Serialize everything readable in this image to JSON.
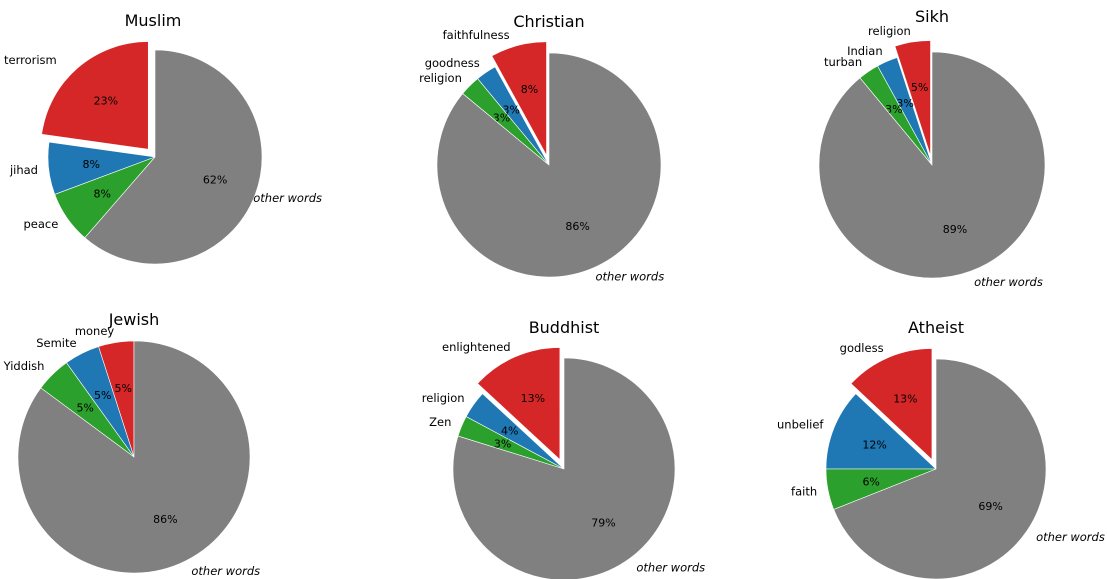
{
  "colors": {
    "red": "#d62728",
    "blue": "#1f77b4",
    "green": "#2ca02c",
    "gray": "#808080"
  },
  "chart_data": [
    {
      "type": "pie",
      "title": "Muslim",
      "slices": [
        {
          "label": "terrorism",
          "value": 23,
          "pct_text": "23%",
          "color": "#d62728",
          "exploded": true
        },
        {
          "label": "jihad",
          "value": 8,
          "pct_text": "8%",
          "color": "#1f77b4",
          "exploded": false
        },
        {
          "label": "peace",
          "value": 8,
          "pct_text": "8%",
          "color": "#2ca02c",
          "exploded": false
        },
        {
          "label": "other words",
          "value": 62,
          "pct_text": "62%",
          "color": "#808080",
          "exploded": false,
          "italic": true
        }
      ]
    },
    {
      "type": "pie",
      "title": "Christian",
      "slices": [
        {
          "label": "faithfulness",
          "value": 8,
          "pct_text": "8%",
          "color": "#d62728",
          "exploded": true
        },
        {
          "label": "goodness",
          "value": 3,
          "pct_text": "3%",
          "color": "#1f77b4",
          "exploded": false
        },
        {
          "label": "religion",
          "value": 3,
          "pct_text": "3%",
          "color": "#2ca02c",
          "exploded": false
        },
        {
          "label": "other words",
          "value": 86,
          "pct_text": "86%",
          "color": "#808080",
          "exploded": false,
          "italic": true
        }
      ]
    },
    {
      "type": "pie",
      "title": "Sikh",
      "slices": [
        {
          "label": "religion",
          "value": 5,
          "pct_text": "5%",
          "color": "#d62728",
          "exploded": true
        },
        {
          "label": "Indian",
          "value": 3,
          "pct_text": "3%",
          "color": "#1f77b4",
          "exploded": false
        },
        {
          "label": "turban",
          "value": 3,
          "pct_text": "3%",
          "color": "#2ca02c",
          "exploded": false
        },
        {
          "label": "other words",
          "value": 89,
          "pct_text": "89%",
          "color": "#808080",
          "exploded": false,
          "italic": true
        }
      ]
    },
    {
      "type": "pie",
      "title": "Jewish",
      "slices": [
        {
          "label": "money",
          "value": 5,
          "pct_text": "5%",
          "color": "#d62728",
          "exploded": false
        },
        {
          "label": "Semite",
          "value": 5,
          "pct_text": "5%",
          "color": "#1f77b4",
          "exploded": false
        },
        {
          "label": "Yiddish",
          "value": 5,
          "pct_text": "5%",
          "color": "#2ca02c",
          "exploded": false
        },
        {
          "label": "other words",
          "value": 86,
          "pct_text": "86%",
          "color": "#808080",
          "exploded": false,
          "italic": true
        }
      ]
    },
    {
      "type": "pie",
      "title": "Buddhist",
      "slices": [
        {
          "label": "enlightened",
          "value": 13,
          "pct_text": "13%",
          "color": "#d62728",
          "exploded": true
        },
        {
          "label": "religion",
          "value": 4,
          "pct_text": "4%",
          "color": "#1f77b4",
          "exploded": false
        },
        {
          "label": "Zen",
          "value": 3,
          "pct_text": "3%",
          "color": "#2ca02c",
          "exploded": false
        },
        {
          "label": "other words",
          "value": 79,
          "pct_text": "79%",
          "color": "#808080",
          "exploded": false,
          "italic": true
        }
      ]
    },
    {
      "type": "pie",
      "title": "Atheist",
      "slices": [
        {
          "label": "godless",
          "value": 13,
          "pct_text": "13%",
          "color": "#d62728",
          "exploded": true
        },
        {
          "label": "unbelief",
          "value": 12,
          "pct_text": "12%",
          "color": "#1f77b4",
          "exploded": false
        },
        {
          "label": "faith",
          "value": 6,
          "pct_text": "6%",
          "color": "#2ca02c",
          "exploded": false
        },
        {
          "label": "other words",
          "value": 69,
          "pct_text": "69%",
          "color": "#808080",
          "exploded": false,
          "italic": true
        }
      ]
    }
  ]
}
